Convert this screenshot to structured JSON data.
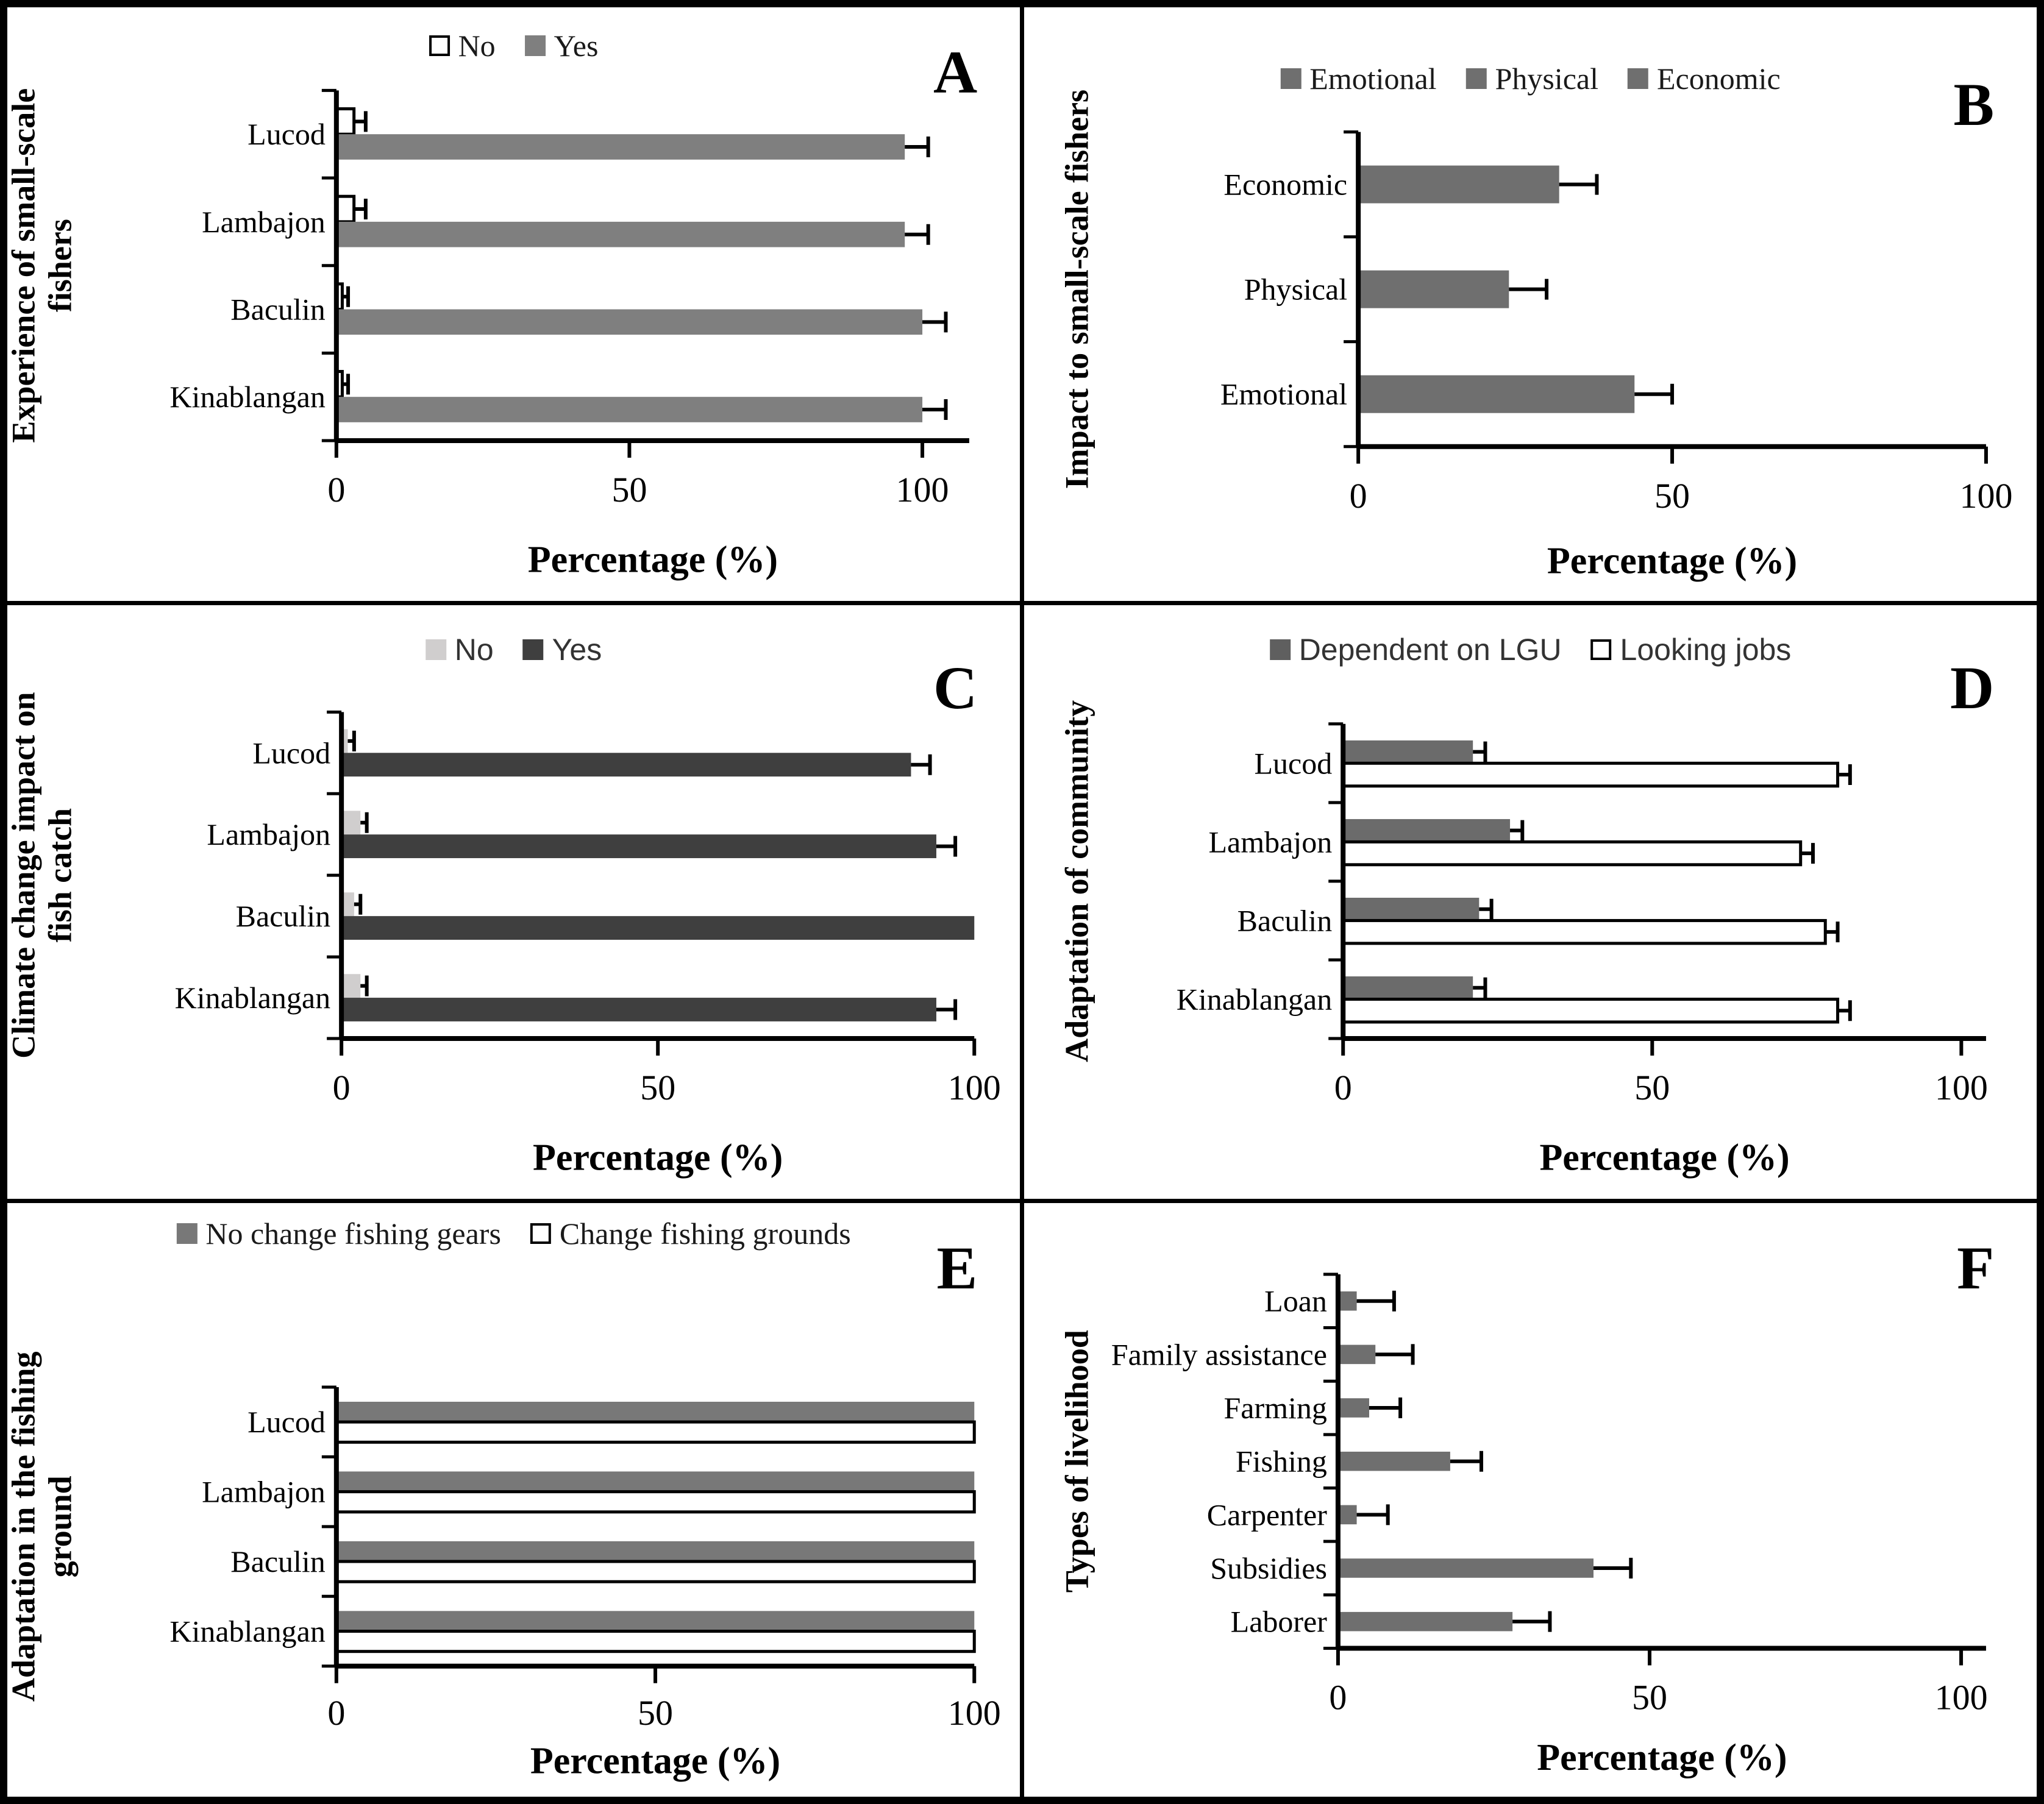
{
  "figure": {
    "description": "Six-panel horizontal bar chart figure on small-scale fishers and climate change",
    "panels": [
      "A",
      "B",
      "C",
      "D",
      "E",
      "F"
    ],
    "shared_xlabel": "Percentage (%)",
    "error_bar_color": "#000000"
  },
  "chart_data": [
    {
      "panel": "A",
      "type": "bar",
      "orientation": "horizontal",
      "ylabel": "Experience of small-scale fishers",
      "ylabel_lines": [
        "Experience of  small-scale",
        "fishers"
      ],
      "xlabel": "Percentage (%)",
      "xticks": [
        0,
        50,
        100
      ],
      "xmax": 108,
      "categories": [
        "Lucod",
        "Lambajon",
        "Baculin",
        "Kinablangan"
      ],
      "legend": [
        {
          "label": "No",
          "fill": "#ffffff",
          "border": "#000000"
        },
        {
          "label": "Yes",
          "fill": "#7f7f7f"
        }
      ],
      "series": [
        {
          "name": "No",
          "fill": "#ffffff",
          "stroke": "#000000",
          "values": [
            3,
            3,
            1,
            1
          ],
          "errors": [
            2,
            2,
            1,
            1
          ]
        },
        {
          "name": "Yes",
          "fill": "#7f7f7f",
          "values": [
            97,
            97,
            100,
            100
          ],
          "errors": [
            4,
            4,
            4,
            4
          ]
        }
      ]
    },
    {
      "panel": "B",
      "type": "bar",
      "orientation": "horizontal",
      "ylabel": "Impact to small-scale fishers",
      "ylabel_lines": [
        "Impact to small-scale fishers"
      ],
      "xlabel": "Percentage (%)",
      "xticks": [
        0,
        50,
        100
      ],
      "xmax": 100,
      "categories": [
        "Economic",
        "Physical",
        "Emotional"
      ],
      "legend": [
        {
          "label": "Emotional",
          "fill": "#6f6f6f"
        },
        {
          "label": "Physical",
          "fill": "#6f6f6f"
        },
        {
          "label": "Economic",
          "fill": "#6f6f6f"
        }
      ],
      "series": [
        {
          "name": "Impact",
          "fill": "#6f6f6f",
          "values": [
            32,
            24,
            44
          ],
          "errors": [
            6,
            6,
            6
          ]
        }
      ]
    },
    {
      "panel": "C",
      "type": "bar",
      "orientation": "horizontal",
      "ylabel": "Climate change impact on fish catch",
      "ylabel_lines": [
        "Climate change impact on",
        "fish catch"
      ],
      "xlabel": "Percentage (%)",
      "xticks": [
        0,
        50,
        100
      ],
      "xmax": 100,
      "categories": [
        "Lucod",
        "Lambajon",
        "Baculin",
        "Kinablangan"
      ],
      "legend": [
        {
          "label": "No",
          "fill": "#d0cece"
        },
        {
          "label": "Yes",
          "fill": "#3f3f3f"
        }
      ],
      "series": [
        {
          "name": "No",
          "fill": "#d0cece",
          "values": [
            1,
            3,
            2,
            3
          ],
          "errors": [
            1,
            1,
            1,
            1
          ]
        },
        {
          "name": "Yes",
          "fill": "#3f3f3f",
          "values": [
            90,
            94,
            100,
            94
          ],
          "errors": [
            3,
            3,
            0,
            3
          ]
        }
      ]
    },
    {
      "panel": "D",
      "type": "bar",
      "orientation": "horizontal",
      "ylabel": "Adaptation of community",
      "ylabel_lines": [
        "Adaptation of community"
      ],
      "xlabel": "Percentage (%)",
      "xticks": [
        0,
        50,
        100
      ],
      "xmax": 104,
      "categories": [
        "Lucod",
        "Lambajon",
        "Baculin",
        "Kinablangan"
      ],
      "legend": [
        {
          "label": "Dependent on LGU",
          "fill": "#5f5f5f"
        },
        {
          "label": "Looking jobs",
          "fill": "#ffffff",
          "border": "#000000"
        }
      ],
      "series": [
        {
          "name": "Dependent on LGU",
          "fill": "#6b6b6b",
          "values": [
            21,
            27,
            22,
            21
          ],
          "errors": [
            2,
            2,
            2,
            2
          ]
        },
        {
          "name": "Looking jobs",
          "fill": "#ffffff",
          "stroke": "#000000",
          "values": [
            80,
            74,
            78,
            80
          ],
          "errors": [
            2,
            2,
            2,
            2
          ]
        }
      ]
    },
    {
      "panel": "E",
      "type": "bar",
      "orientation": "horizontal",
      "ylabel": "Adaptation in the fishing ground",
      "ylabel_lines": [
        "Adaptation in the fishing",
        "ground"
      ],
      "xlabel": "Percentage (%)",
      "xticks": [
        0,
        50,
        100
      ],
      "xmax": 100,
      "categories": [
        "Lucod",
        "Lambajon",
        "Baculin",
        "Kinablangan"
      ],
      "legend": [
        {
          "label": "No change fishing gears",
          "fill": "#787878"
        },
        {
          "label": "Change fishing grounds",
          "fill": "#ffffff",
          "border": "#000000"
        }
      ],
      "series": [
        {
          "name": "No change fishing gears",
          "fill": "#787878",
          "values": [
            100,
            100,
            100,
            100
          ],
          "errors": [
            0,
            0,
            0,
            0
          ]
        },
        {
          "name": "Change fishing grounds",
          "fill": "#ffffff",
          "stroke": "#000000",
          "values": [
            100,
            100,
            100,
            100
          ],
          "errors": [
            0,
            0,
            0,
            0
          ]
        }
      ]
    },
    {
      "panel": "F",
      "type": "bar",
      "orientation": "horizontal",
      "ylabel": "Types of livelihood",
      "ylabel_lines": [
        "Types of livelihood"
      ],
      "xlabel": "Percentage (%)",
      "xticks": [
        0,
        50,
        100
      ],
      "xmax": 104,
      "categories": [
        "Loan",
        "Family assistance",
        "Farming",
        "Fishing",
        "Carpenter",
        "Subsidies",
        "Laborer"
      ],
      "legend": [],
      "series": [
        {
          "name": "Livelihood",
          "fill": "#6f6f6f",
          "values": [
            3,
            6,
            5,
            18,
            3,
            41,
            28
          ],
          "errors": [
            6,
            6,
            5,
            5,
            5,
            6,
            6
          ]
        }
      ]
    }
  ]
}
